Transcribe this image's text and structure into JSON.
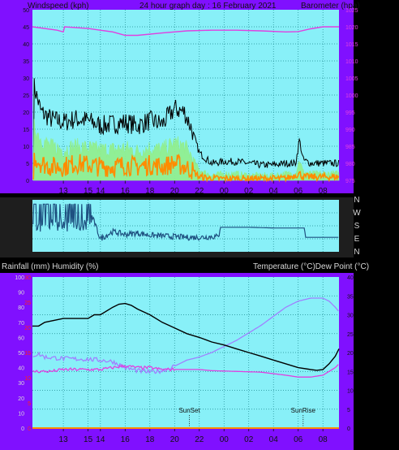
{
  "header": {
    "left_label": "Windspeed (kph)",
    "title": "24 hour graph day : 16 February 2021",
    "right_label": "Barometer (hpa)"
  },
  "lower_header": {
    "left_label": "Rainfall (mm)  Humidity (%)",
    "right_label": "Temperature (°C)Dew Point (°C)"
  },
  "colors": {
    "frame": "#8010ff",
    "plot_bg": "#88f0f8",
    "grid": "#1e8a90",
    "baro": "#e040e0",
    "gust": "#000000",
    "avg_wind": "#90ee90",
    "wind_low": "#ff8c00",
    "direction": "#1e5080",
    "temp": "#000000",
    "dew": "#e040e0",
    "humidity": "#a080ff",
    "rain": "#ff8c00",
    "rain_axis": "#ff2020",
    "dark": "#1e1e1e"
  },
  "chart_data": [
    {
      "type": "line",
      "name": "wind-and-pressure",
      "x_ticks": [
        "13",
        "15",
        "14",
        "16",
        "18",
        "20",
        "22",
        "00",
        "02",
        "04",
        "06",
        "08"
      ],
      "x_tick_hours": [
        0,
        2,
        3,
        5,
        7,
        9,
        11,
        13,
        15,
        17,
        19,
        21
      ],
      "x_range_hours": [
        -2.5,
        22.3
      ],
      "left_axis": {
        "label": "Windspeed (kph)",
        "ticks": [
          "0",
          "5",
          "10",
          "15",
          "20",
          "25",
          "30",
          "35",
          "40",
          "45",
          "50"
        ],
        "range": [
          0,
          50
        ]
      },
      "right_axis": {
        "label": "Barometer (hpa)",
        "ticks": [
          "975",
          "980",
          "985",
          "990",
          "995",
          "1000",
          "1005",
          "1010",
          "1015",
          "1020",
          "1025"
        ],
        "range": [
          975,
          1025
        ]
      },
      "series": [
        {
          "key": "pressure",
          "points": [
            [
              -2.5,
              1020
            ],
            [
              -0.5,
              1019
            ],
            [
              0,
              1018.5
            ],
            [
              0.1,
              1020
            ],
            [
              2,
              1019.5
            ],
            [
              4,
              1018.5
            ],
            [
              5,
              1017.5
            ],
            [
              6,
              1017.5
            ],
            [
              8,
              1018.2
            ],
            [
              10,
              1018.8
            ],
            [
              12,
              1019
            ],
            [
              14,
              1019
            ],
            [
              16,
              1018.8
            ],
            [
              18,
              1018.5
            ],
            [
              19,
              1018.6
            ],
            [
              20,
              1019.4
            ],
            [
              21,
              1020
            ],
            [
              22.3,
              1020
            ]
          ]
        },
        {
          "key": "gust",
          "points": [
            [
              -2.4,
              28
            ],
            [
              -1.8,
              20
            ],
            [
              -1,
              18
            ],
            [
              0,
              17
            ],
            [
              1,
              18
            ],
            [
              2,
              17.5
            ],
            [
              3,
              16
            ],
            [
              4,
              16.5
            ],
            [
              5,
              17
            ],
            [
              6,
              16
            ],
            [
              7,
              17.5
            ],
            [
              8,
              16.5
            ],
            [
              9,
              21
            ],
            [
              9.8,
              20
            ],
            [
              10.4,
              15
            ],
            [
              11,
              8
            ],
            [
              12,
              5
            ],
            [
              13,
              5.5
            ],
            [
              14,
              5.5
            ],
            [
              15,
              5
            ],
            [
              16,
              4.5
            ],
            [
              17,
              4.5
            ],
            [
              18,
              5
            ],
            [
              18.8,
              5
            ],
            [
              19.1,
              12
            ],
            [
              19.4,
              6
            ],
            [
              20,
              5
            ],
            [
              21,
              5
            ],
            [
              22.3,
              5
            ]
          ]
        },
        {
          "key": "average",
          "points": [
            [
              -2.4,
              16
            ],
            [
              -1.8,
              12
            ],
            [
              -1,
              10
            ],
            [
              0,
              9
            ],
            [
              1,
              10
            ],
            [
              2,
              9.5
            ],
            [
              3,
              9
            ],
            [
              4,
              9
            ],
            [
              5,
              9.5
            ],
            [
              6,
              8.5
            ],
            [
              7,
              9.5
            ],
            [
              8,
              9
            ],
            [
              9,
              11
            ],
            [
              9.8,
              10
            ],
            [
              10.4,
              7
            ],
            [
              11,
              3
            ],
            [
              12,
              1.5
            ],
            [
              13,
              2
            ],
            [
              14,
              2
            ],
            [
              15,
              1.5
            ],
            [
              16,
              1.5
            ],
            [
              17,
              1.5
            ],
            [
              18,
              2
            ],
            [
              18.8,
              2
            ],
            [
              19.1,
              6
            ],
            [
              19.4,
              2.5
            ],
            [
              20,
              2
            ],
            [
              21,
              2
            ],
            [
              22.3,
              2
            ]
          ]
        },
        {
          "key": "low",
          "points": [
            [
              -2.4,
              7
            ],
            [
              -1.8,
              5
            ],
            [
              -1,
              4
            ],
            [
              0,
              4
            ],
            [
              1,
              5
            ],
            [
              2,
              4.5
            ],
            [
              3,
              4
            ],
            [
              4,
              4
            ],
            [
              5,
              4.5
            ],
            [
              6,
              4
            ],
            [
              7,
              4.5
            ],
            [
              8,
              4
            ],
            [
              9,
              5
            ],
            [
              9.8,
              4
            ],
            [
              10.4,
              3
            ],
            [
              11,
              1
            ],
            [
              12,
              0.5
            ],
            [
              14,
              0.5
            ],
            [
              16,
              0.5
            ],
            [
              18,
              0.5
            ],
            [
              19.1,
              2
            ],
            [
              19.4,
              1
            ],
            [
              22.3,
              1
            ]
          ]
        }
      ]
    },
    {
      "type": "line",
      "name": "wind-direction",
      "x_range_hours": [
        -2.5,
        22.3
      ],
      "axis": {
        "labels": [
          "N",
          "W",
          "S",
          "E",
          "N"
        ],
        "range": [
          360,
          0
        ]
      },
      "series": [
        {
          "key": "direction",
          "points": [
            [
              -2.5,
              300
            ],
            [
              -1.5,
              310
            ],
            [
              -0.8,
              340
            ],
            [
              0,
              280
            ],
            [
              0.5,
              120
            ],
            [
              1,
              210
            ],
            [
              1.5,
              100
            ],
            [
              2,
              320
            ],
            [
              3,
              90
            ],
            [
              4,
              140
            ],
            [
              5,
              120
            ],
            [
              6,
              130
            ],
            [
              7,
              115
            ],
            [
              8,
              110
            ],
            [
              9,
              105
            ],
            [
              10,
              100
            ],
            [
              11,
              100
            ],
            [
              12,
              105
            ],
            [
              12.6,
              105
            ],
            [
              12.7,
              170
            ],
            [
              15,
              170
            ],
            [
              17,
              165
            ],
            [
              19.5,
              165
            ],
            [
              19.6,
              100
            ],
            [
              22.3,
              100
            ]
          ]
        }
      ]
    },
    {
      "type": "line",
      "name": "temperature-humidity-rain",
      "x_ticks": [
        "13",
        "15",
        "14",
        "16",
        "18",
        "20",
        "22",
        "00",
        "02",
        "04",
        "06",
        "08"
      ],
      "x_tick_hours": [
        0,
        2,
        3,
        5,
        7,
        9,
        11,
        13,
        15,
        17,
        19,
        21
      ],
      "x_range_hours": [
        -2.5,
        22.3
      ],
      "humidity_axis": {
        "label": "Humidity (%)",
        "ticks": [
          "0",
          "10",
          "20",
          "30",
          "40",
          "50",
          "60",
          "70",
          "80",
          "90",
          "100"
        ],
        "range": [
          0,
          100
        ]
      },
      "rain_axis": {
        "label": "Rainfall (mm)",
        "ticks": [
          "0",
          "5",
          "10",
          "15",
          "20",
          "25",
          "30"
        ],
        "range": [
          0,
          30
        ]
      },
      "temp_axis": {
        "label": "Temperature (°C)Dew Point (°C)",
        "ticks": [
          "0",
          "5",
          "10",
          "15",
          "20",
          "25",
          "30",
          "35",
          "40"
        ],
        "range": [
          0,
          40
        ]
      },
      "annotations": [
        {
          "label": "SunSet",
          "hour": 10.2
        },
        {
          "label": "SunRise",
          "hour": 19.4
        }
      ],
      "series": [
        {
          "key": "temperature",
          "points": [
            [
              -2.5,
              27
            ],
            [
              -2,
              27
            ],
            [
              -1.5,
              28
            ],
            [
              0,
              29
            ],
            [
              2,
              29
            ],
            [
              2.5,
              30
            ],
            [
              3,
              30
            ],
            [
              4,
              32
            ],
            [
              4.5,
              32.8
            ],
            [
              5,
              33
            ],
            [
              5.5,
              32.5
            ],
            [
              6,
              31.5
            ],
            [
              7,
              30
            ],
            [
              8,
              28
            ],
            [
              9,
              26.5
            ],
            [
              10,
              25
            ],
            [
              11,
              24
            ],
            [
              12,
              22.8
            ],
            [
              13,
              22
            ],
            [
              14,
              21
            ],
            [
              15,
              20
            ],
            [
              16,
              19
            ],
            [
              17,
              18
            ],
            [
              18,
              17
            ],
            [
              19,
              16
            ],
            [
              20,
              15.5
            ],
            [
              20.5,
              15.3
            ],
            [
              21,
              15.5
            ],
            [
              21.5,
              17
            ],
            [
              22,
              19
            ],
            [
              22.3,
              21
            ]
          ]
        },
        {
          "key": "dew",
          "points": [
            [
              -2.5,
              15
            ],
            [
              -1,
              15
            ],
            [
              0,
              15.5
            ],
            [
              2,
              15.5
            ],
            [
              3,
              15.5
            ],
            [
              4,
              16
            ],
            [
              5,
              16.5
            ],
            [
              6,
              16
            ],
            [
              7,
              16
            ],
            [
              8,
              15.5
            ],
            [
              9,
              15.5
            ],
            [
              10,
              15.5
            ],
            [
              11,
              15.5
            ],
            [
              12,
              15.2
            ],
            [
              14,
              15
            ],
            [
              16,
              14.8
            ],
            [
              18,
              14
            ],
            [
              19,
              13.5
            ],
            [
              20,
              13.5
            ],
            [
              21,
              14
            ],
            [
              22,
              16
            ],
            [
              22.3,
              17
            ]
          ]
        },
        {
          "key": "humidity",
          "points": [
            [
              -2.5,
              48
            ],
            [
              -2,
              49
            ],
            [
              -1.5,
              47
            ],
            [
              0,
              46
            ],
            [
              2,
              45.5
            ],
            [
              3,
              45
            ],
            [
              4,
              44
            ],
            [
              5,
              40
            ],
            [
              6,
              38
            ],
            [
              7,
              37
            ],
            [
              8,
              38
            ],
            [
              9,
              41
            ],
            [
              10,
              45
            ],
            [
              11,
              47
            ],
            [
              12,
              50
            ],
            [
              13,
              54
            ],
            [
              14,
              58
            ],
            [
              15,
              63
            ],
            [
              16,
              68
            ],
            [
              17,
              74
            ],
            [
              18,
              80
            ],
            [
              19,
              84
            ],
            [
              20,
              86
            ],
            [
              21,
              86
            ],
            [
              21.5,
              84
            ],
            [
              22,
              80
            ],
            [
              22.3,
              77
            ]
          ]
        },
        {
          "key": "rain",
          "points": [
            [
              -2.5,
              0
            ],
            [
              22.3,
              0
            ]
          ]
        }
      ]
    }
  ]
}
